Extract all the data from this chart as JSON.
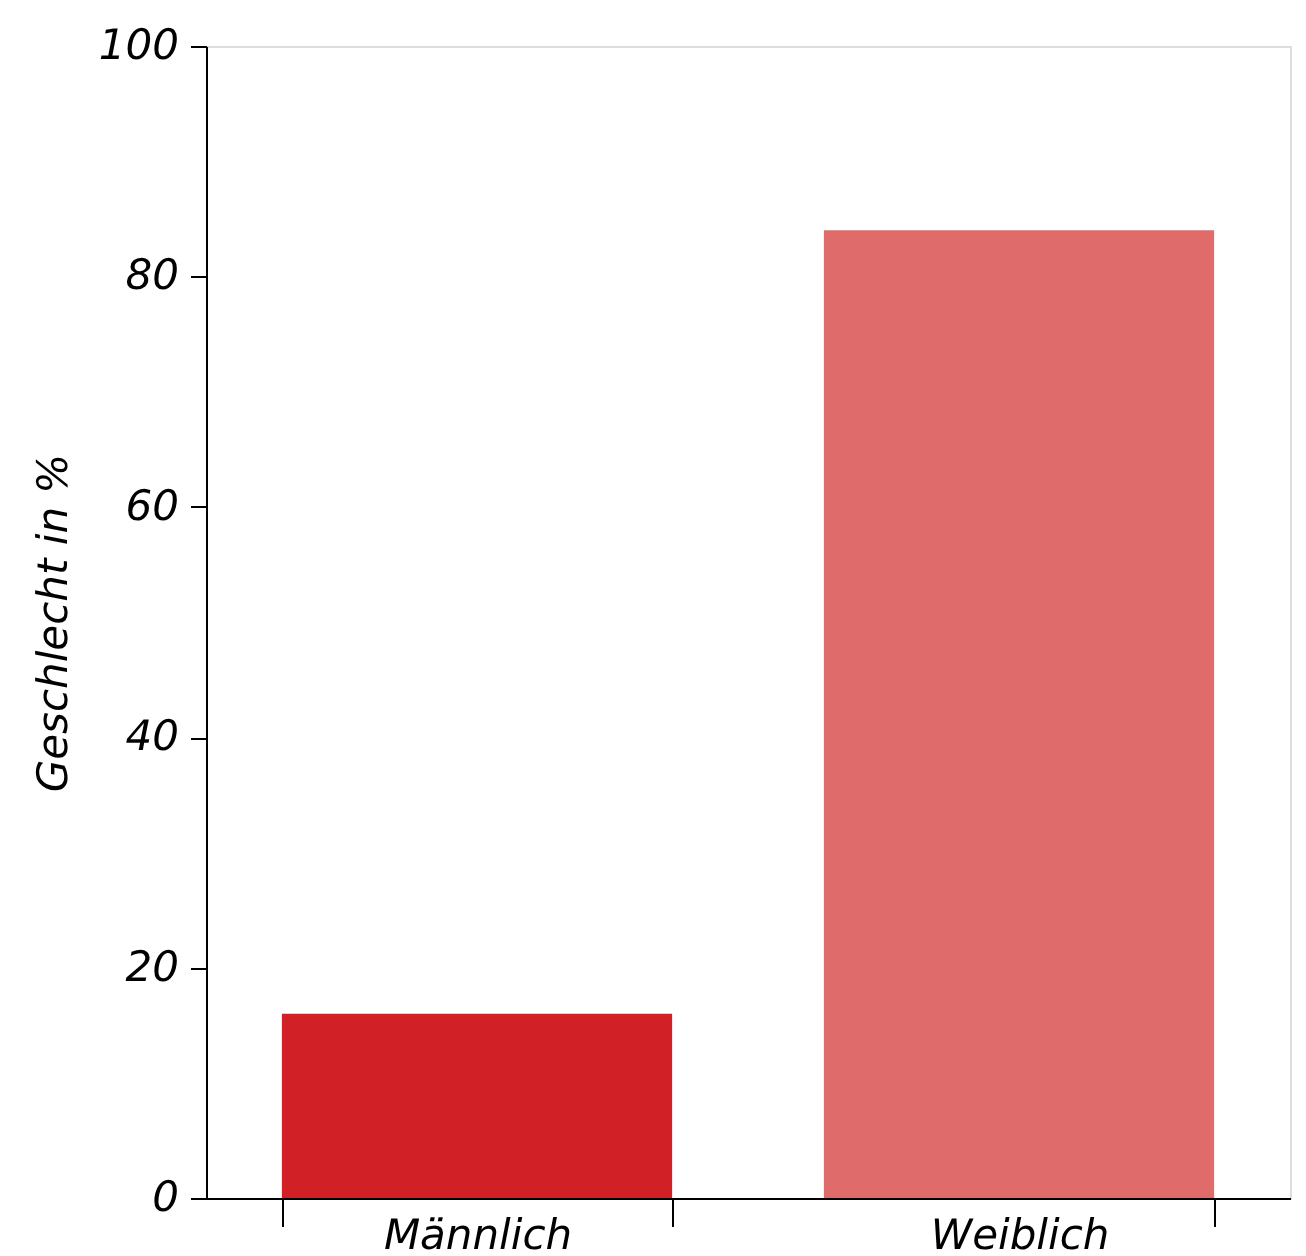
{
  "chart_data": {
    "type": "bar",
    "ylabel": "Geschlecht in %",
    "categories": [
      "Männlich",
      "Weiblich"
    ],
    "values": [
      16,
      84
    ],
    "colors": [
      "#d12026",
      "#e06b6b"
    ],
    "ylim": [
      0,
      100
    ],
    "yticks": [
      0,
      20,
      40,
      60,
      80,
      100
    ],
    "grid": false,
    "legend": false
  }
}
